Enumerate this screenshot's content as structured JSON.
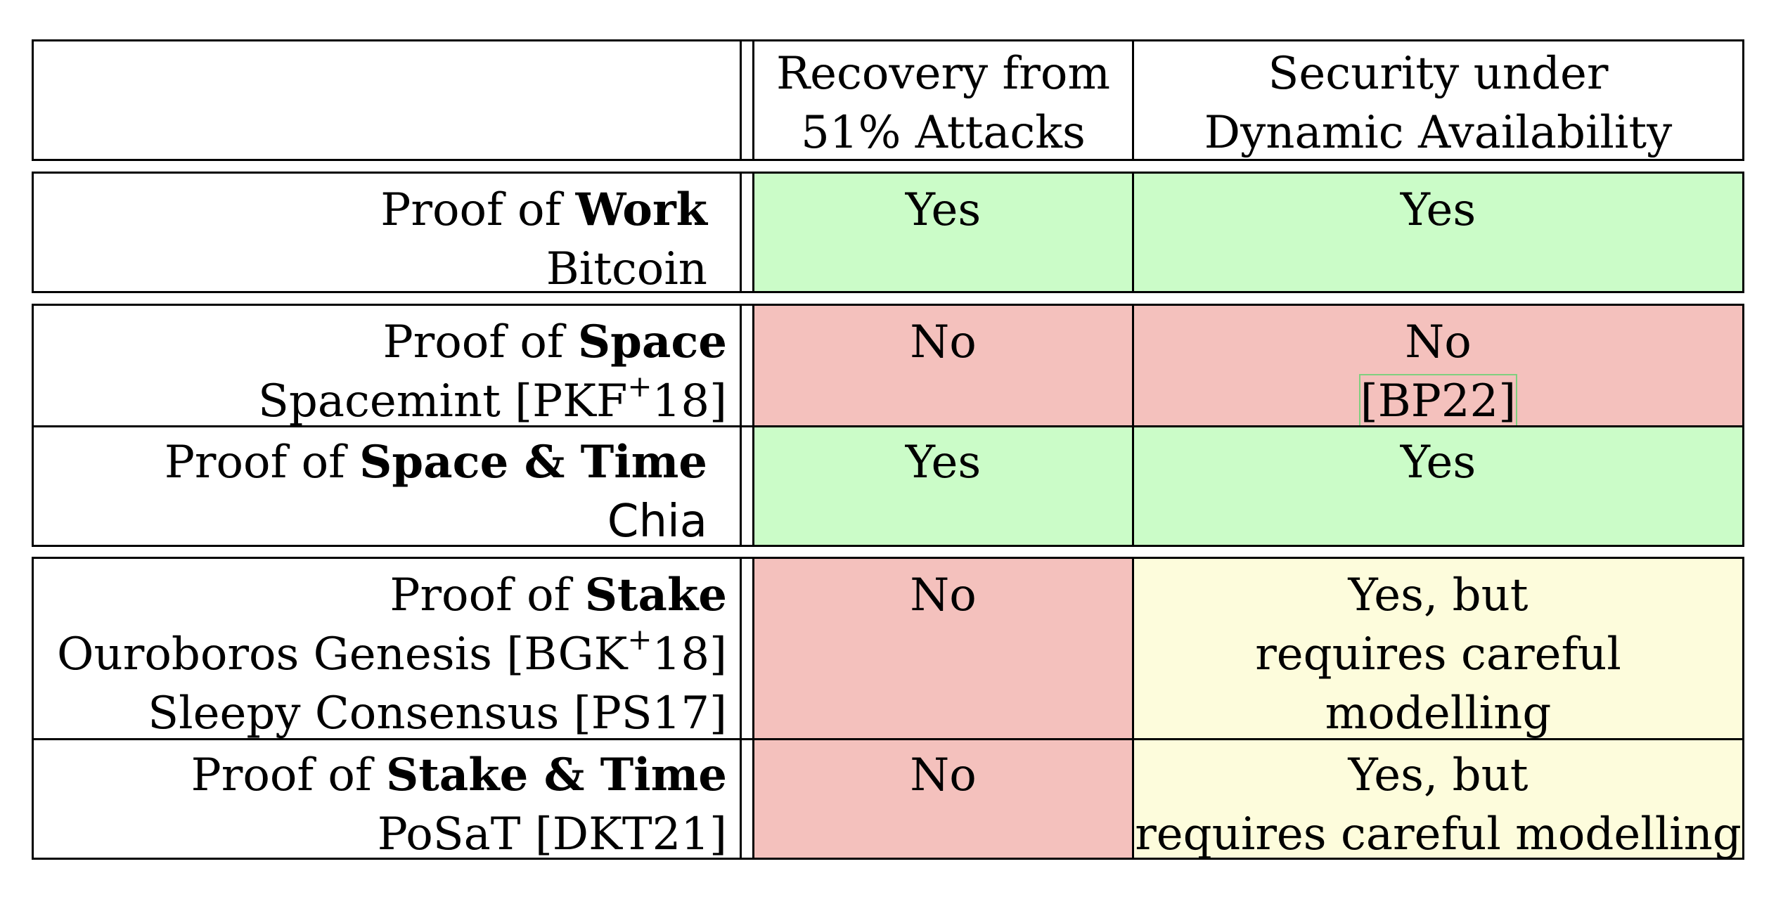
{
  "header": {
    "col1": [
      "Recovery from",
      "51% Attacks"
    ],
    "col2": [
      "Security under",
      "Dynamic Availability"
    ]
  },
  "rows": [
    {
      "prefix": "Proof of ",
      "bold": "Work",
      "examples": [
        "Bitcoin"
      ],
      "recovery": "Yes",
      "security": [
        "Yes"
      ]
    },
    {
      "prefix": "Proof of ",
      "bold": "Space",
      "examples": [
        "Spacemint [PKF",
        "+",
        "18]"
      ],
      "recovery": "No",
      "security": [
        "No",
        "[BP22]"
      ]
    },
    {
      "prefix": "Proof of ",
      "bold": "Space & Time",
      "examples": [
        "Chia"
      ],
      "recovery": "Yes",
      "security": [
        "Yes"
      ]
    },
    {
      "prefix": "Proof of ",
      "bold": "Stake",
      "examples": [
        "Ouroboros Genesis [BGK",
        "+",
        "18]",
        "Sleepy Consensus [PS17]"
      ],
      "recovery": "No",
      "security": [
        "Yes, but",
        "requires careful",
        "modelling"
      ]
    },
    {
      "prefix": "Proof of ",
      "bold": "Stake & Time",
      "examples": [
        "PoSaT [DKT21]"
      ],
      "recovery": "No",
      "security": [
        "Yes, but",
        "requires careful modelling"
      ]
    }
  ],
  "colors": {
    "yes": "#cbfcc8",
    "no": "#f4c1bd",
    "partial": "#fdfcdc"
  }
}
